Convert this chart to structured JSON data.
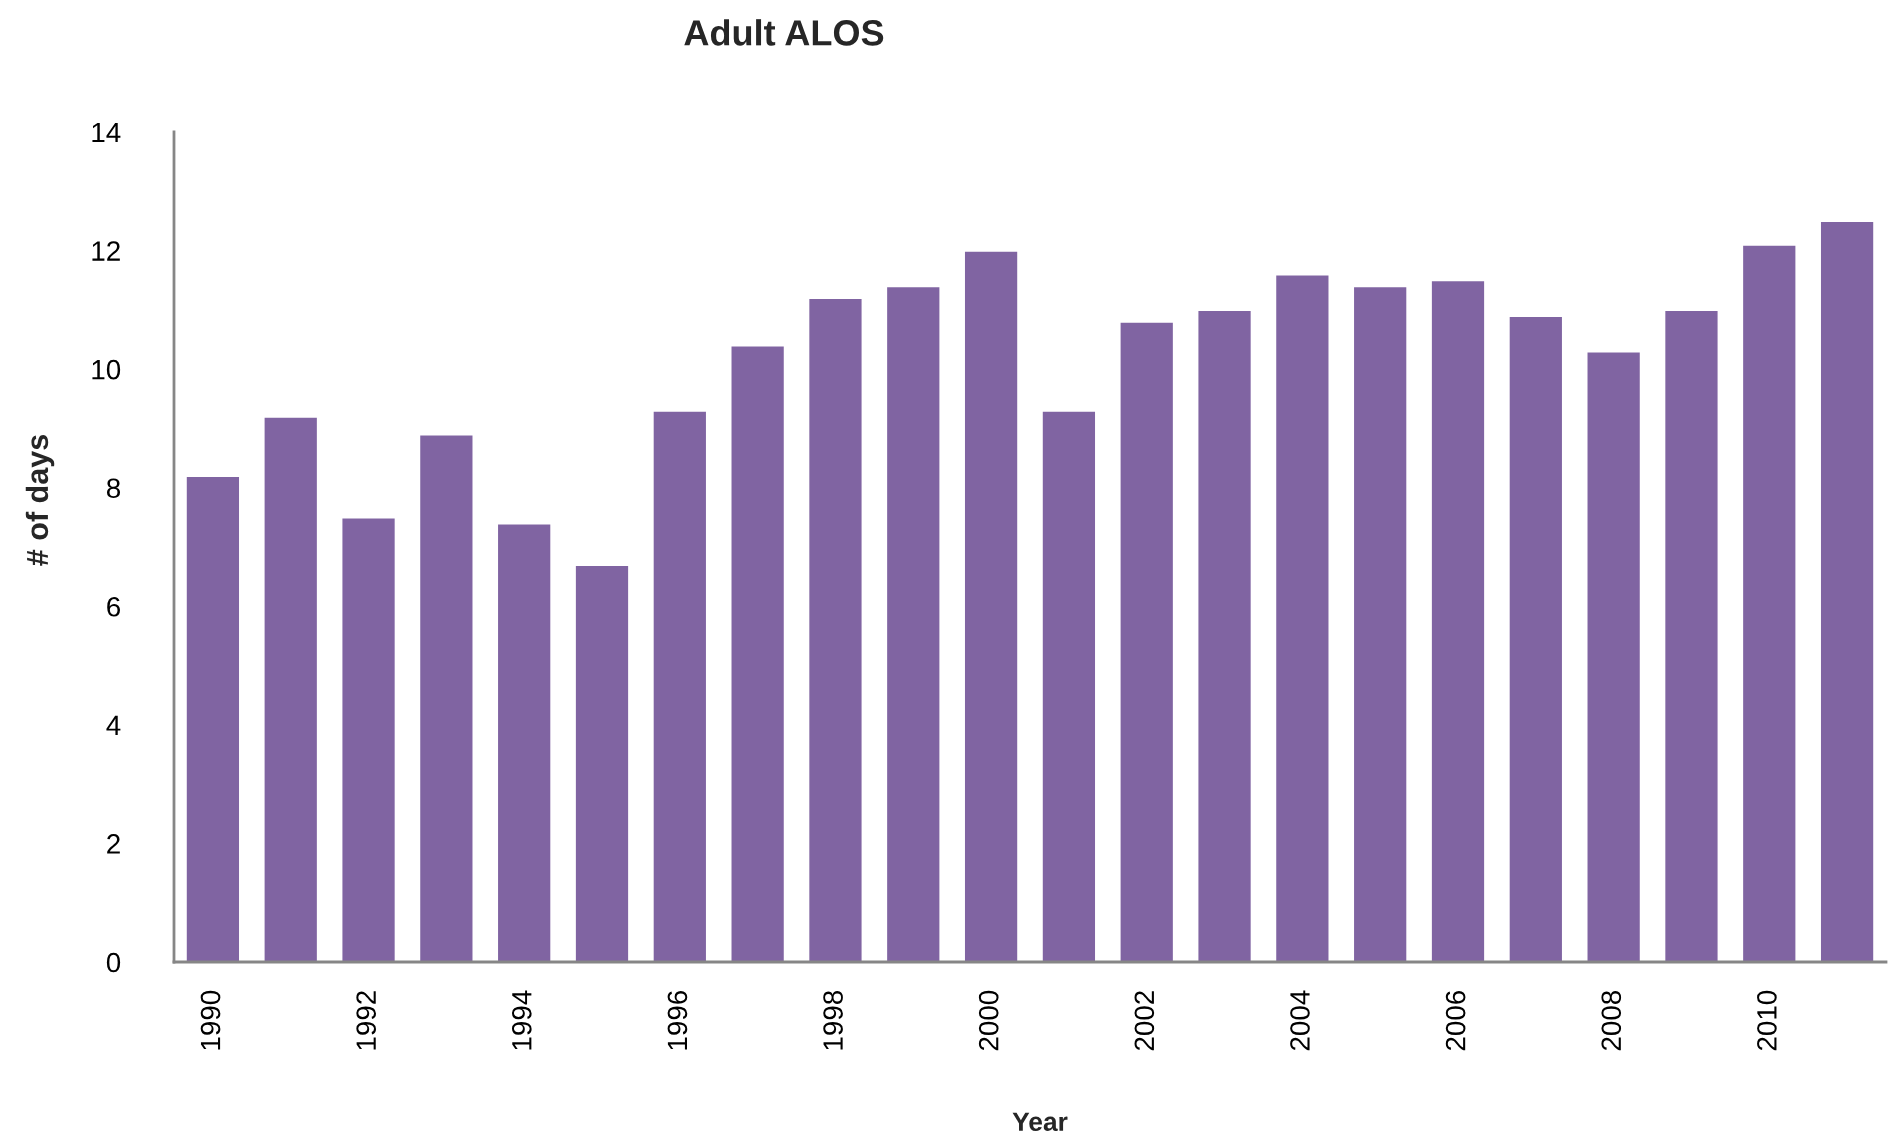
{
  "chart_data": {
    "type": "bar",
    "title": "Adult ALOS",
    "xlabel": "Year",
    "ylabel": "# of days",
    "categories": [
      "1990",
      null,
      "1992",
      null,
      "1994",
      null,
      "1996",
      null,
      "1998",
      null,
      "2000",
      null,
      "2002",
      null,
      "2004",
      null,
      "2006",
      null,
      "2008",
      null,
      "2010",
      null
    ],
    "values": [
      8.2,
      9.2,
      7.5,
      8.9,
      7.4,
      6.7,
      9.3,
      10.4,
      11.2,
      11.4,
      12.0,
      9.3,
      10.8,
      11.0,
      11.6,
      11.4,
      11.5,
      10.9,
      10.3,
      11.0,
      12.1,
      12.5
    ],
    "color": "#8064a2",
    "ylim": [
      0,
      14
    ],
    "yticks": [
      0,
      2,
      4,
      6,
      8,
      10,
      12,
      14
    ]
  }
}
